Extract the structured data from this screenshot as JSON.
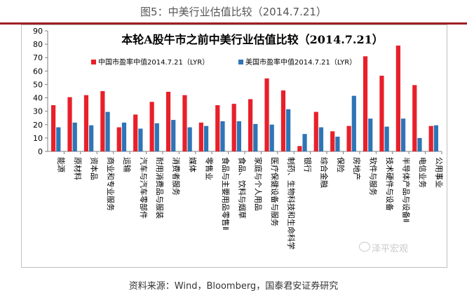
{
  "figure_title": "图5：中美行业估值比较（2014.7.21）",
  "source_note": "资料来源：Wind，Bloomberg，国泰君安证券研究",
  "watermark": "泽平宏观",
  "colors": {
    "china": "#e8202a",
    "us": "#2e75b6",
    "rule": "#9e1f24"
  },
  "chart_data": {
    "type": "bar",
    "title": "本轮A股牛市之前中美行业估值比较（2014.7.21）",
    "xlabel": "",
    "ylabel": "",
    "ylim": [
      0,
      90
    ],
    "yticks": [
      0,
      10,
      20,
      30,
      40,
      50,
      60,
      70,
      80,
      90
    ],
    "grid": false,
    "legend_position": "top",
    "categories": [
      "能源",
      "原材料",
      "资本品",
      "商业和专业服务",
      "运输",
      "汽车与汽车零部件",
      "耐用消费品与服装",
      "消费者服务",
      "媒体",
      "零售业",
      "食品与主要用品零售Ⅱ",
      "食品、饮料与烟草",
      "家庭与个人用品",
      "医疗保健设备与服务",
      "制药、生物科技和生命科学",
      "银行",
      "综合金融",
      "保险",
      "房地产",
      "软件与服务",
      "技术硬件与设备",
      "半导体产品与设备Ⅱ",
      "电信业务",
      "公用事业"
    ],
    "series": [
      {
        "name": "中国市盈率中值2014.7.21（LYR）",
        "color": "#e8202a",
        "values": [
          34.5,
          40.5,
          42,
          45,
          18,
          27.5,
          37,
          44.5,
          42,
          21.5,
          34.5,
          35.5,
          39,
          54.5,
          45.5,
          4,
          29.5,
          15,
          19,
          71,
          56.5,
          79,
          49.5,
          19
        ]
      },
      {
        "name": "美国市盈率中值2014.7.21（LYR）",
        "color": "#2e75b6",
        "values": [
          18,
          21.5,
          19.5,
          29.5,
          21.5,
          17,
          21,
          23.5,
          18,
          19,
          22.5,
          22.5,
          20.5,
          20,
          31.5,
          13,
          18,
          11,
          41.5,
          24.5,
          18.5,
          24.5,
          10,
          19.5
        ]
      }
    ]
  }
}
